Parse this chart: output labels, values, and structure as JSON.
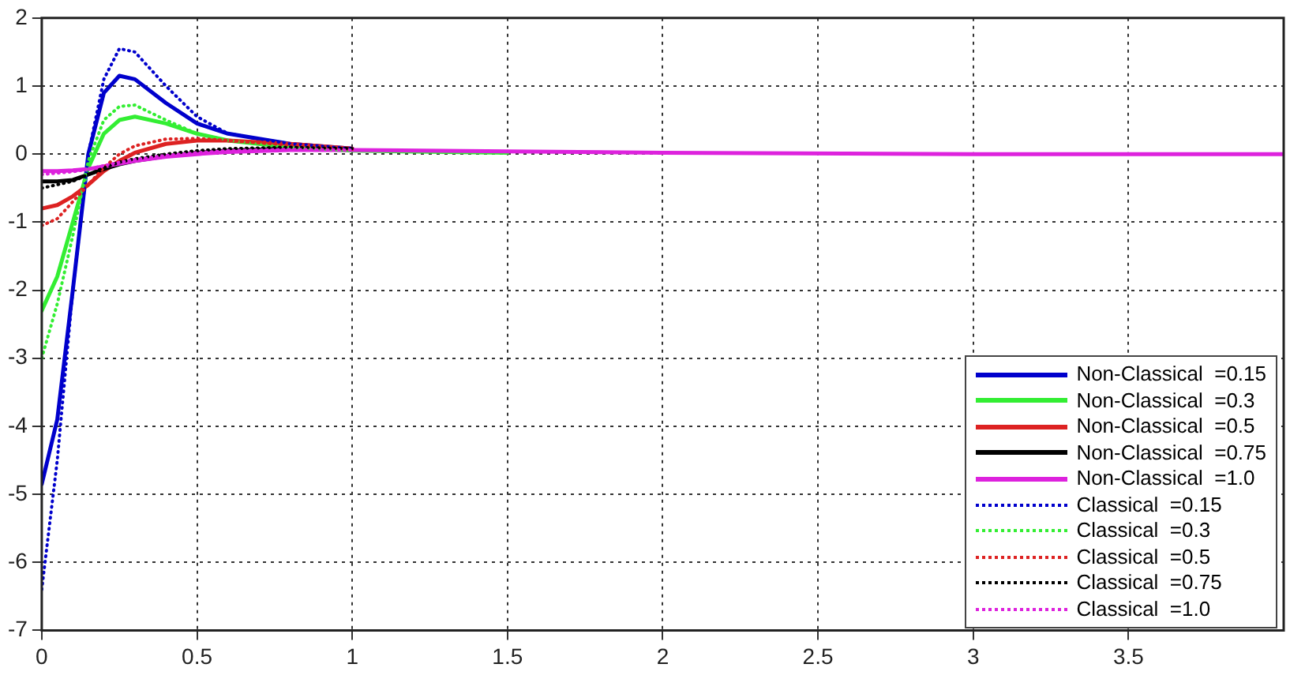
{
  "chart_data": {
    "type": "line",
    "x": [
      0,
      0.05,
      0.1,
      0.15,
      0.2,
      0.25,
      0.3,
      0.4,
      0.5,
      0.6,
      0.8,
      1,
      1.5,
      2,
      3,
      4
    ],
    "series": [
      {
        "name": "Non-Classical  =0.15",
        "color": "#0000cc",
        "line_style": "solid",
        "values": [
          -4.85,
          -3.9,
          -2.0,
          0.0,
          0.9,
          1.15,
          1.1,
          0.75,
          0.45,
          0.3,
          0.15,
          0.08,
          null,
          null,
          null,
          null
        ]
      },
      {
        "name": "Non-Classical  =0.3",
        "color": "#33ee33",
        "line_style": "solid",
        "values": [
          -2.3,
          -1.8,
          -1.0,
          -0.2,
          0.3,
          0.5,
          0.55,
          0.45,
          0.3,
          0.2,
          0.1,
          0.05,
          0.02,
          null,
          null,
          null
        ]
      },
      {
        "name": "Non-Classical  =0.5",
        "color": "#dd2222",
        "line_style": "solid",
        "values": [
          -0.8,
          -0.75,
          -0.62,
          -0.45,
          -0.25,
          -0.1,
          0.02,
          0.15,
          0.2,
          0.2,
          0.15,
          0.08,
          null,
          null,
          null,
          null
        ]
      },
      {
        "name": "Non-Classical  =0.75",
        "color": "#000000",
        "line_style": "solid",
        "values": [
          -0.4,
          -0.4,
          -0.38,
          -0.3,
          -0.22,
          -0.15,
          -0.1,
          -0.03,
          0.02,
          0.05,
          0.08,
          0.07,
          null,
          null,
          null,
          null
        ]
      },
      {
        "name": "Non-Classical  =1.0",
        "color": "#dd22dd",
        "line_style": "solid",
        "values": [
          -0.25,
          -0.25,
          -0.24,
          -0.22,
          -0.18,
          -0.14,
          -0.1,
          -0.04,
          0.0,
          0.03,
          0.06,
          0.06,
          0.04,
          0.02,
          0,
          0
        ]
      },
      {
        "name": "Classical  =0.15",
        "color": "#0000cc",
        "line_style": "dotted",
        "values": [
          -6.4,
          -4.5,
          -2.0,
          0.0,
          1.1,
          1.55,
          1.5,
          1.0,
          0.55,
          0.3,
          0.15,
          0.08,
          null,
          null,
          null,
          null
        ]
      },
      {
        "name": "Classical  =0.3",
        "color": "#33ee33",
        "line_style": "dotted",
        "values": [
          -3.0,
          -2.2,
          -1.2,
          -0.1,
          0.5,
          0.7,
          0.72,
          0.5,
          0.3,
          0.2,
          0.1,
          0.05,
          null,
          null,
          null,
          null
        ]
      },
      {
        "name": "Classical  =0.5",
        "color": "#dd2222",
        "line_style": "dotted",
        "values": [
          -1.05,
          -0.95,
          -0.7,
          -0.45,
          -0.2,
          0,
          0.12,
          0.22,
          0.23,
          0.2,
          0.13,
          0.07,
          null,
          null,
          null,
          null
        ]
      },
      {
        "name": "Classical  =0.75",
        "color": "#000000",
        "line_style": "dotted",
        "values": [
          -0.5,
          -0.45,
          -0.4,
          -0.3,
          -0.2,
          -0.12,
          -0.07,
          0,
          0.05,
          0.08,
          0.1,
          0.08,
          null,
          null,
          null,
          null
        ]
      },
      {
        "name": "Classical  =1.0",
        "color": "#dd22dd",
        "line_style": "dotted",
        "values": [
          -0.3,
          -0.28,
          -0.26,
          -0.22,
          -0.17,
          -0.12,
          -0.08,
          -0.02,
          0.02,
          0.05,
          0.07,
          0.06,
          null,
          null,
          null,
          null
        ]
      }
    ],
    "xlim": [
      0,
      4
    ],
    "xticks": [
      0,
      0.5,
      1,
      1.5,
      2,
      2.5,
      3,
      3.5
    ],
    "ylim": [
      -7,
      2
    ],
    "yticks": [
      -7,
      -6,
      -5,
      -4,
      -3,
      -2,
      -1,
      0,
      1,
      2
    ],
    "grid": true,
    "legend": "bottom right",
    "marker": "none"
  }
}
